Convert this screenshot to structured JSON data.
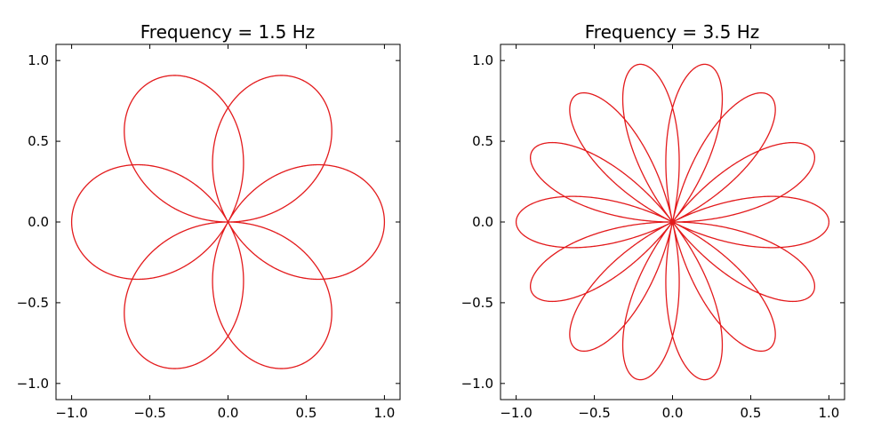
{
  "chart_data": [
    {
      "type": "line",
      "title": "Frequency = 1.5 Hz",
      "xlabel": "",
      "ylabel": "",
      "xlim": [
        -1.1,
        1.1
      ],
      "ylim": [
        -1.1,
        1.1
      ],
      "xticks": [
        -1.0,
        -0.5,
        0.0,
        0.5,
        1.0
      ],
      "yticks": [
        -1.0,
        -0.5,
        0.0,
        0.5,
        1.0
      ],
      "xtick_labels": [
        "−1.0",
        "−0.5",
        "0.0",
        "0.5",
        "1.0"
      ],
      "ytick_labels": [
        "−1.0",
        "−0.5",
        "0.0",
        "0.5",
        "1.0"
      ],
      "grid": false,
      "series": [
        {
          "curve": "polar rose r = sin(k·θ), shown as x = sin(k·θ)·cos(θ), y = sin(k·θ)·sin(θ)",
          "frequency": 1.5,
          "color": "#e31a1c",
          "theta_range": [
            0,
            12.566
          ]
        }
      ]
    },
    {
      "type": "line",
      "title": "Frequency = 3.5 Hz",
      "xlabel": "",
      "ylabel": "",
      "xlim": [
        -1.1,
        1.1
      ],
      "ylim": [
        -1.1,
        1.1
      ],
      "xticks": [
        -1.0,
        -0.5,
        0.0,
        0.5,
        1.0
      ],
      "yticks": [
        -1.0,
        -0.5,
        0.0,
        0.5,
        1.0
      ],
      "xtick_labels": [
        "−1.0",
        "−0.5",
        "0.0",
        "0.5",
        "1.0"
      ],
      "ytick_labels": [
        "−1.0",
        "−0.5",
        "0.0",
        "0.5",
        "1.0"
      ],
      "grid": false,
      "series": [
        {
          "curve": "x = cos(k·θ)·cos(θ), y = cos(k·θ)·sin(θ)",
          "frequency": 3.5,
          "color": "#e31a1c",
          "theta_range": [
            0,
            12.566
          ]
        }
      ]
    }
  ]
}
